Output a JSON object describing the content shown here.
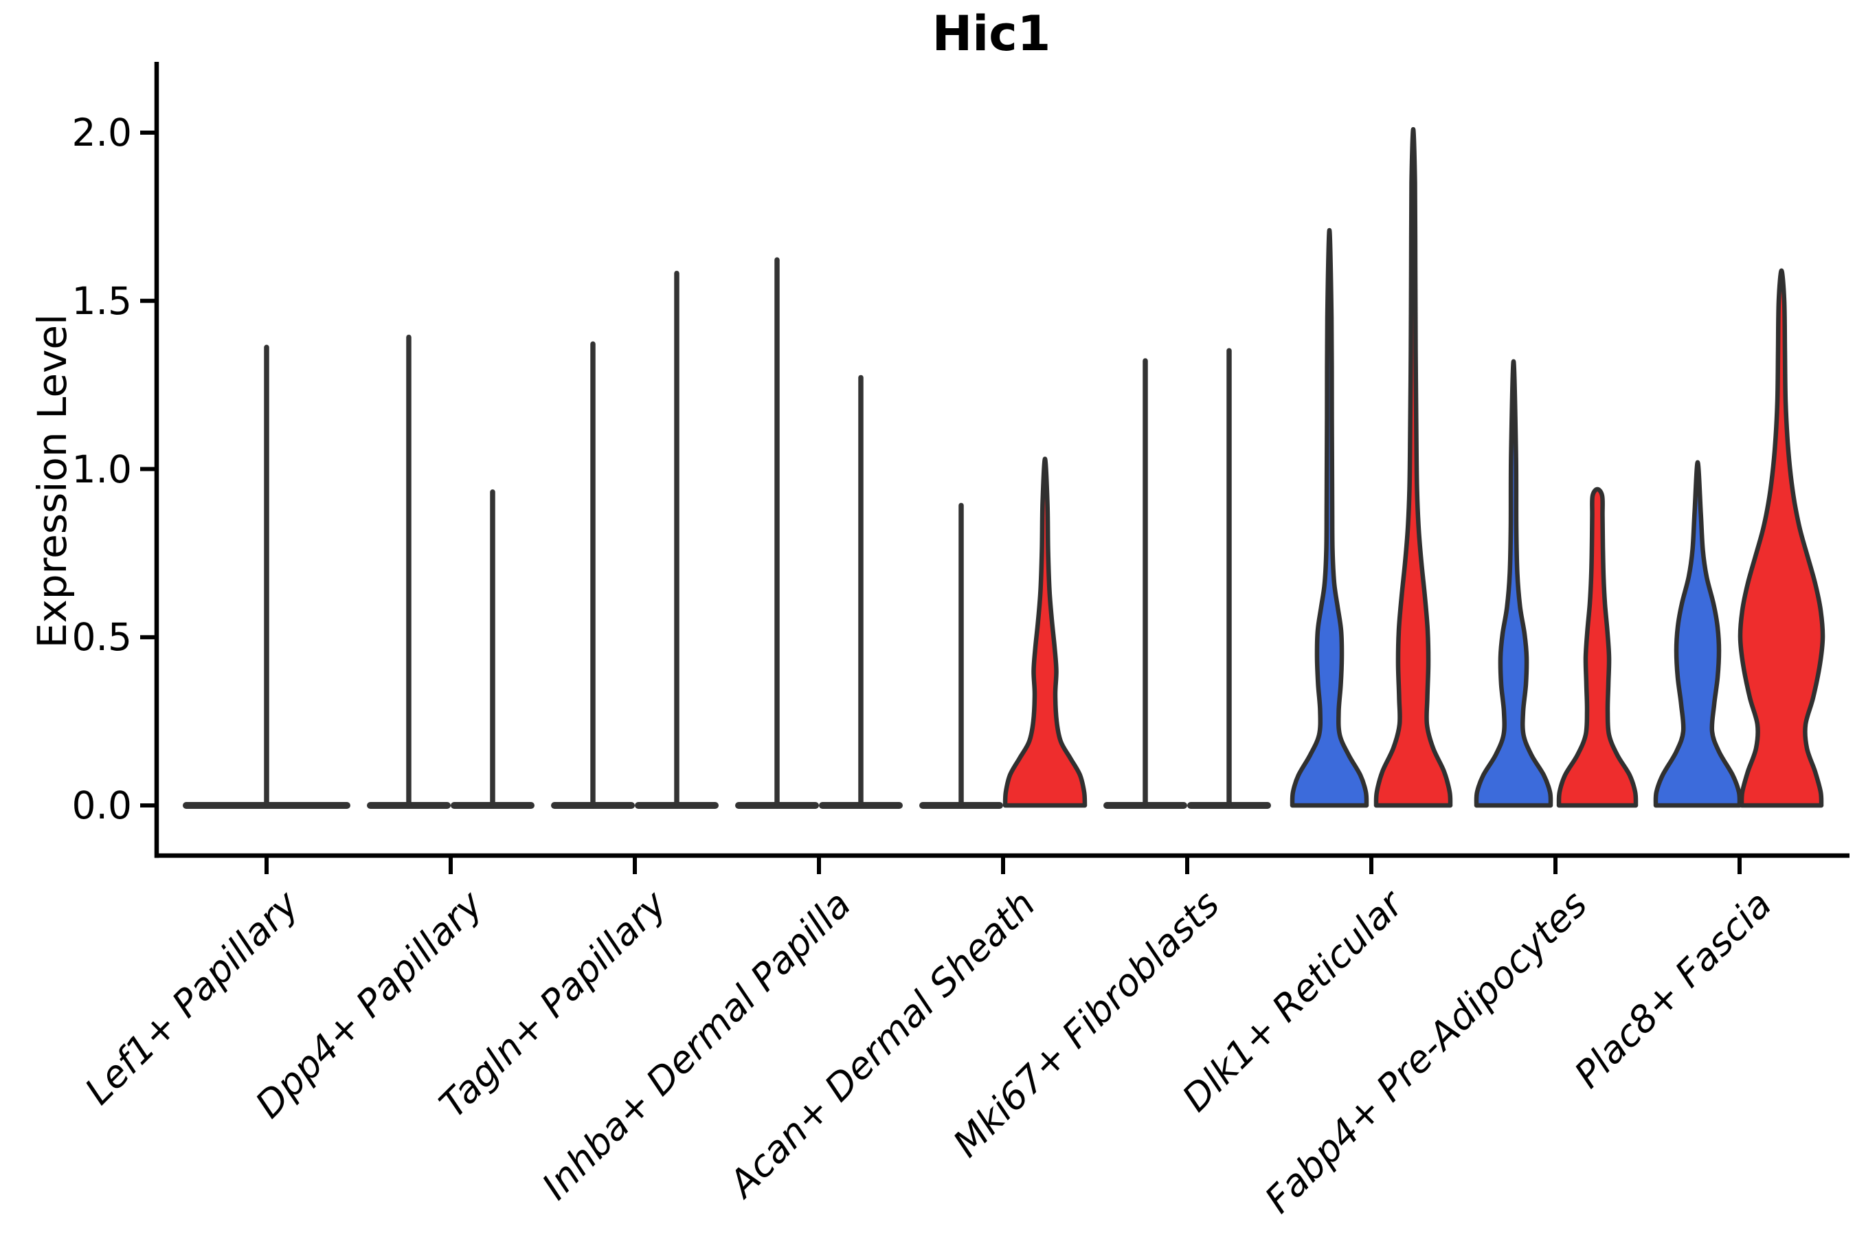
{
  "title": "Hic1",
  "ylabel": "Expression Level",
  "colors": {
    "blue": "#3C6BDB",
    "red": "#EE2D2D",
    "white": "#FFFFFF",
    "outline": "#303030",
    "spike": "#333333",
    "axis": "#000000"
  },
  "chart_data": {
    "type": "violin",
    "title": "Hic1",
    "xlabel": "",
    "ylabel": "Expression Level",
    "ylim": [
      -0.09,
      2.21
    ],
    "yticks": [
      {
        "value": 0.0,
        "label": "0.0"
      },
      {
        "value": 0.5,
        "label": "0.5"
      },
      {
        "value": 1.0,
        "label": "1.0"
      },
      {
        "value": 1.5,
        "label": "1.5"
      },
      {
        "value": 2.0,
        "label": "2.0"
      }
    ],
    "grid": false,
    "legend": "none",
    "categories": [
      "Lef1+ Papillary",
      "Dpp4+ Papillary",
      "Tagln+ Papillary",
      "Inhba+ Dermal Papilla",
      "Acan+ Dermal Sheath",
      "Mki67+ Fibroblasts",
      "Dlk1+ Reticular",
      "Fabp4+ Pre-Adipocytes",
      "Plac8+ Fascia"
    ],
    "violins": [
      {
        "category": "Lef1+ Papillary",
        "group": 0,
        "side": "single",
        "color": "white",
        "shape": "spike",
        "max_expression": 1.37,
        "half_width": 122
      },
      {
        "category": "Dpp4+ Papillary",
        "group": 1,
        "side": "left",
        "color": "white",
        "shape": "spike",
        "max_expression": 1.4,
        "half_width": 61
      },
      {
        "category": "Dpp4+ Papillary",
        "group": 1,
        "side": "right",
        "color": "white",
        "shape": "spike",
        "max_expression": 0.94,
        "half_width": 61
      },
      {
        "category": "Tagln+ Papillary",
        "group": 2,
        "side": "left",
        "color": "white",
        "shape": "spike",
        "max_expression": 1.38,
        "half_width": 61
      },
      {
        "category": "Tagln+ Papillary",
        "group": 2,
        "side": "right",
        "color": "white",
        "shape": "spike",
        "max_expression": 1.59,
        "half_width": 61
      },
      {
        "category": "Inhba+ Dermal Papilla",
        "group": 3,
        "side": "left",
        "color": "white",
        "shape": "spike",
        "max_expression": 1.63,
        "half_width": 61
      },
      {
        "category": "Inhba+ Dermal Papilla",
        "group": 3,
        "side": "right",
        "color": "white",
        "shape": "spike",
        "max_expression": 1.28,
        "half_width": 61
      },
      {
        "category": "Acan+ Dermal Sheath",
        "group": 4,
        "side": "left",
        "color": "white",
        "shape": "spike",
        "max_expression": 0.9,
        "half_width": 61
      },
      {
        "category": "Acan+ Dermal Sheath",
        "group": 4,
        "side": "right",
        "color": "red",
        "shape": "body",
        "max_expression": 1.03,
        "profile": [
          [
            0,
            58
          ],
          [
            0.04,
            57
          ],
          [
            0.09,
            51
          ],
          [
            0.14,
            37
          ],
          [
            0.19,
            23
          ],
          [
            0.25,
            17
          ],
          [
            0.33,
            15
          ],
          [
            0.4,
            16.5
          ],
          [
            0.47,
            14
          ],
          [
            0.55,
            10
          ],
          [
            0.64,
            6.5
          ],
          [
            0.76,
            4.5
          ],
          [
            0.9,
            3.5
          ],
          [
            1.03,
            0
          ]
        ]
      },
      {
        "category": "Mki67+ Fibroblasts",
        "group": 5,
        "side": "left",
        "color": "white",
        "shape": "spike",
        "max_expression": 1.33,
        "half_width": 61
      },
      {
        "category": "Mki67+ Fibroblasts",
        "group": 5,
        "side": "right",
        "color": "white",
        "shape": "spike",
        "max_expression": 1.36,
        "half_width": 61
      },
      {
        "category": "Dlk1+ Reticular",
        "group": 6,
        "side": "left",
        "color": "blue",
        "shape": "body",
        "max_expression": 1.71,
        "profile": [
          [
            0,
            54
          ],
          [
            0.04,
            53
          ],
          [
            0.09,
            45
          ],
          [
            0.15,
            28
          ],
          [
            0.21,
            15
          ],
          [
            0.28,
            13.5
          ],
          [
            0.36,
            16.5
          ],
          [
            0.44,
            18
          ],
          [
            0.52,
            17
          ],
          [
            0.59,
            12
          ],
          [
            0.66,
            7
          ],
          [
            0.76,
            4.5
          ],
          [
            0.9,
            4
          ],
          [
            1.15,
            3.5
          ],
          [
            1.45,
            3
          ],
          [
            1.71,
            0
          ]
        ]
      },
      {
        "category": "Dlk1+ Reticular",
        "group": 6,
        "side": "right",
        "color": "red",
        "shape": "body",
        "max_expression": 2.01,
        "profile": [
          [
            0,
            54
          ],
          [
            0.04,
            53
          ],
          [
            0.1,
            45
          ],
          [
            0.17,
            29
          ],
          [
            0.24,
            20
          ],
          [
            0.32,
            20.5
          ],
          [
            0.42,
            22
          ],
          [
            0.52,
            21
          ],
          [
            0.62,
            17
          ],
          [
            0.72,
            12
          ],
          [
            0.82,
            8
          ],
          [
            0.94,
            5.5
          ],
          [
            1.1,
            4.5
          ],
          [
            1.35,
            3.5
          ],
          [
            1.6,
            3
          ],
          [
            1.85,
            2.5
          ],
          [
            2.01,
            0
          ]
        ]
      },
      {
        "category": "Fabp4+ Pre-Adipocytes",
        "group": 7,
        "side": "left",
        "color": "blue",
        "shape": "body",
        "max_expression": 1.32,
        "profile": [
          [
            0,
            54
          ],
          [
            0.04,
            53
          ],
          [
            0.09,
            44
          ],
          [
            0.15,
            26
          ],
          [
            0.21,
            14.5
          ],
          [
            0.28,
            14
          ],
          [
            0.36,
            18
          ],
          [
            0.44,
            19
          ],
          [
            0.51,
            16
          ],
          [
            0.59,
            9.5
          ],
          [
            0.69,
            5.5
          ],
          [
            0.83,
            4
          ],
          [
            1.05,
            3.5
          ],
          [
            1.32,
            0
          ]
        ]
      },
      {
        "category": "Fabp4+ Pre-Adipocytes",
        "group": 7,
        "side": "right",
        "color": "red",
        "shape": "body",
        "max_expression": 0.94,
        "profile": [
          [
            0,
            56
          ],
          [
            0.04,
            55
          ],
          [
            0.09,
            47
          ],
          [
            0.15,
            29
          ],
          [
            0.21,
            17
          ],
          [
            0.28,
            15
          ],
          [
            0.36,
            16
          ],
          [
            0.44,
            17
          ],
          [
            0.52,
            14.5
          ],
          [
            0.6,
            11
          ],
          [
            0.68,
            9
          ],
          [
            0.77,
            8
          ],
          [
            0.86,
            7.5
          ],
          [
            0.92,
            7
          ],
          [
            0.94,
            0
          ]
        ]
      },
      {
        "category": "Plac8+ Fascia",
        "group": 8,
        "side": "left",
        "color": "blue",
        "shape": "body",
        "max_expression": 1.02,
        "profile": [
          [
            0,
            61
          ],
          [
            0.04,
            60
          ],
          [
            0.09,
            51
          ],
          [
            0.16,
            31
          ],
          [
            0.22,
            21
          ],
          [
            0.3,
            24
          ],
          [
            0.38,
            29
          ],
          [
            0.46,
            31
          ],
          [
            0.53,
            29
          ],
          [
            0.6,
            23
          ],
          [
            0.68,
            13
          ],
          [
            0.76,
            7.5
          ],
          [
            0.87,
            4.5
          ],
          [
            1.02,
            0
          ]
        ]
      },
      {
        "category": "Plac8+ Fascia",
        "group": 8,
        "side": "right",
        "color": "red",
        "shape": "body",
        "max_expression": 1.59,
        "profile": [
          [
            0,
            58
          ],
          [
            0.04,
            57
          ],
          [
            0.1,
            49
          ],
          [
            0.17,
            37
          ],
          [
            0.24,
            35
          ],
          [
            0.32,
            46
          ],
          [
            0.42,
            56
          ],
          [
            0.5,
            60
          ],
          [
            0.58,
            57
          ],
          [
            0.66,
            49
          ],
          [
            0.74,
            38
          ],
          [
            0.82,
            27
          ],
          [
            0.9,
            19
          ],
          [
            0.98,
            13.5
          ],
          [
            1.08,
            9
          ],
          [
            1.2,
            6
          ],
          [
            1.35,
            5
          ],
          [
            1.5,
            4
          ],
          [
            1.59,
            0
          ]
        ]
      }
    ]
  }
}
